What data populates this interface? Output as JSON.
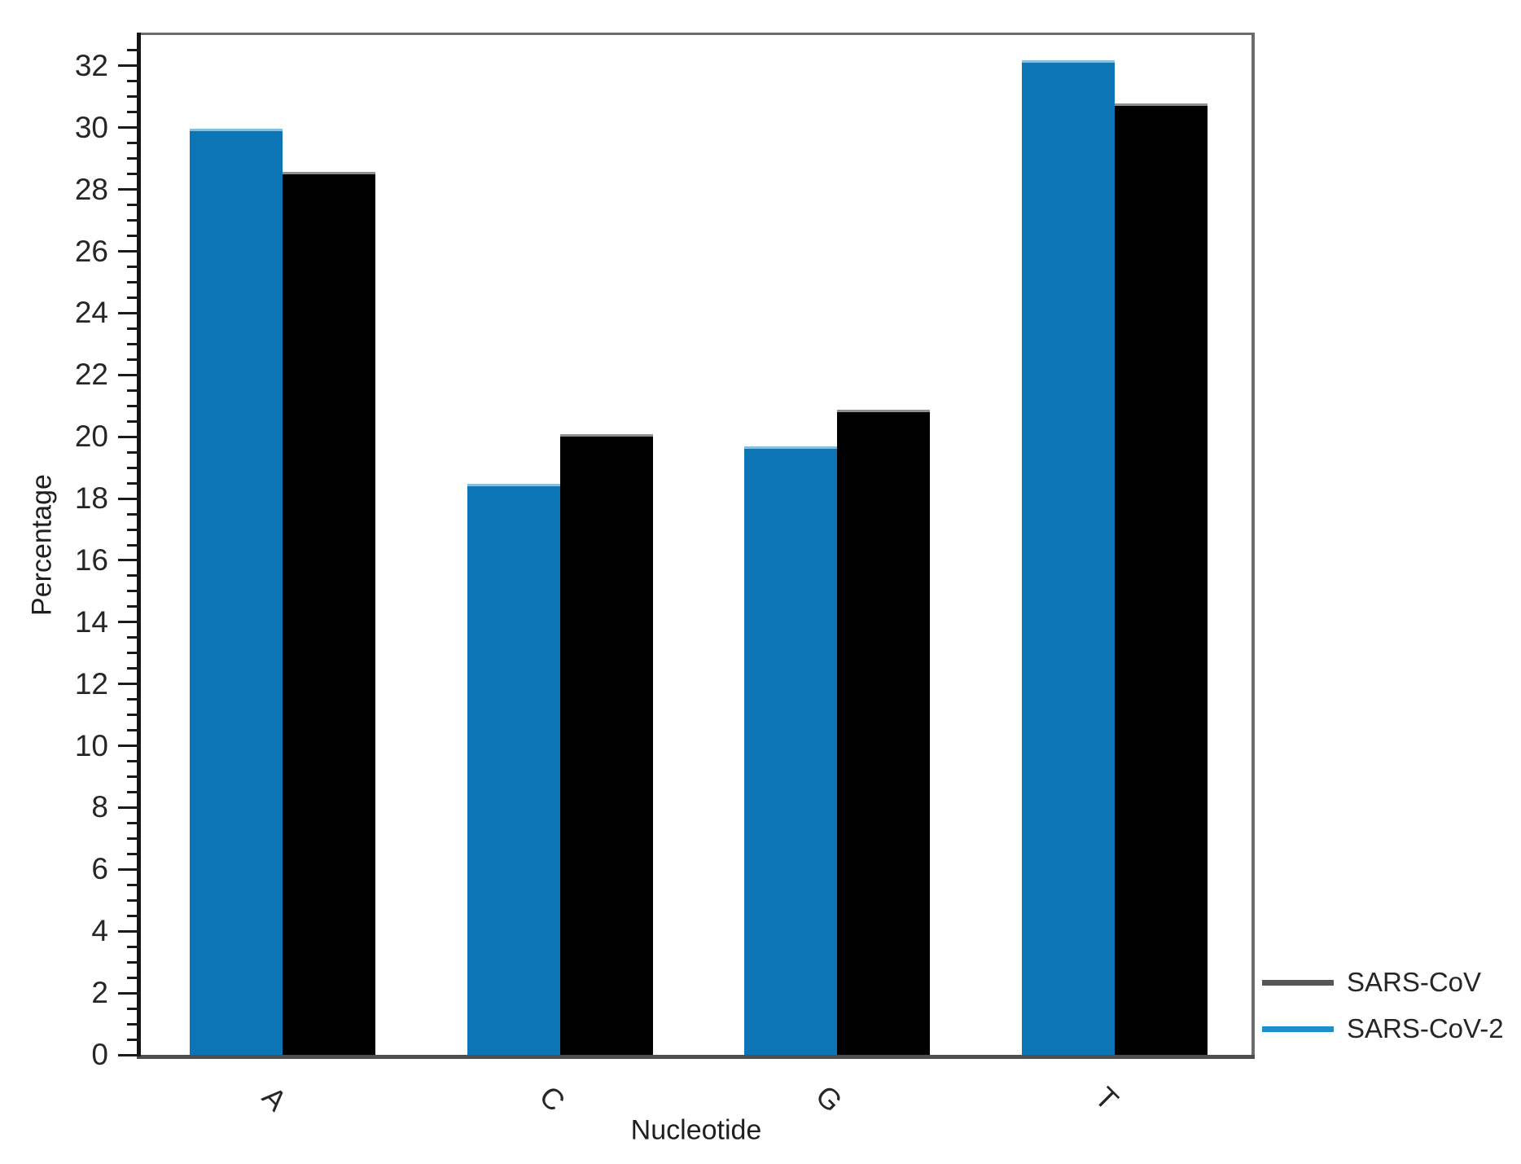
{
  "chart_data": {
    "type": "bar",
    "categories": [
      "A",
      "C",
      "G",
      "T"
    ],
    "series": [
      {
        "name": "SARS-CoV-2",
        "color": "#0C75B5",
        "values": [
          29.9,
          18.4,
          19.6,
          32.1
        ]
      },
      {
        "name": "SARS-CoV",
        "color": "#000000",
        "values": [
          28.5,
          20.0,
          20.8,
          30.7
        ]
      }
    ],
    "xlabel": "Nucleotide",
    "ylabel": "Percentage",
    "ylim": [
      0,
      33
    ],
    "ytick_major_step": 2,
    "ytick_minor_step": 0.5,
    "ytick_labels": [
      "0",
      "2",
      "4",
      "6",
      "8",
      "10",
      "12",
      "14",
      "16",
      "18",
      "20",
      "22",
      "24",
      "26",
      "28",
      "30",
      "32"
    ],
    "xtick_labels": [
      "A",
      "C",
      "G",
      "T"
    ],
    "grid": false,
    "legend": {
      "position": "outside-right-bottom",
      "items": [
        {
          "label": "SARS-CoV",
          "swatch_type": "line",
          "swatch_color": "#565656"
        },
        {
          "label": "SARS-CoV-2",
          "swatch_type": "line",
          "swatch_color": "#1D8FCB"
        }
      ]
    }
  }
}
